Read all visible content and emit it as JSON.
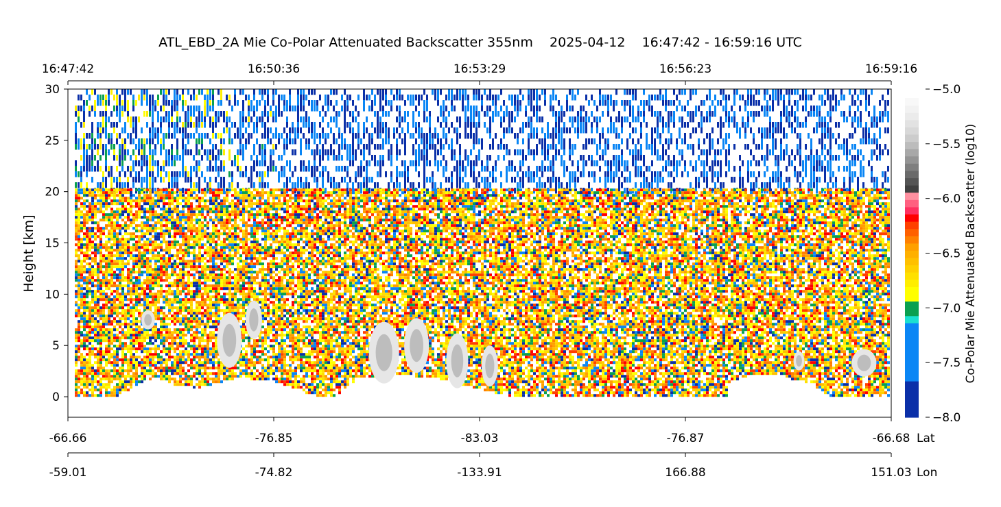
{
  "chart_data": {
    "type": "heatmap",
    "title": "ATL_EBD_2A Mie Co-Polar Attenuated Backscatter 355nm    2025-04-12    16:47:42 - 16:59:16 UTC",
    "ylabel": "Height [km]",
    "ylim": [
      -2,
      30
    ],
    "yticks": [
      0,
      5,
      10,
      15,
      20,
      25,
      30
    ],
    "time_ticks": [
      "16:47:42",
      "16:50:36",
      "16:53:29",
      "16:56:23",
      "16:59:16"
    ],
    "lat_ticks": [
      "-66.66",
      "-76.85",
      "-83.03",
      "-76.87",
      "-66.68"
    ],
    "lat_label": "Lat",
    "lon_ticks": [
      "-59.01",
      "-74.82",
      "-133.91",
      "166.88",
      "151.03"
    ],
    "lon_label": "Lon",
    "colorbar": {
      "label": "Co-Polar Mie Attenuated Backscatter (log10)",
      "range": [
        -8.0,
        -5.0
      ],
      "ticks": [
        "-8.0",
        "-7.5",
        "-7.0",
        "-6.5",
        "-6.0",
        "-5.5",
        "-5.0"
      ],
      "colors": [
        "#0a2fa8",
        "#0a2fa8",
        "#0a2fa8",
        "#0a2fa8",
        "#0a2fa8",
        "#0a86f5",
        "#0a86f5",
        "#0a86f5",
        "#0a86f5",
        "#0a86f5",
        "#0a86f5",
        "#0a86f5",
        "#0a86f5",
        "#1ae0d0",
        "#0aa050",
        "#0aa050",
        "#ffff00",
        "#ffff00",
        "#ffee00",
        "#ffe000",
        "#ffd000",
        "#ffc000",
        "#ffb000",
        "#ffa000",
        "#ff8000",
        "#ff6000",
        "#ff4000",
        "#ff0000",
        "#ff3060",
        "#ff6080",
        "#ff90a0",
        "#404040",
        "#555555",
        "#6a6a6a",
        "#7f7f7f",
        "#949494",
        "#a8a8a8",
        "#bcbcbc",
        "#cccccc",
        "#d8d8d8",
        "#e2e2e2",
        "#ebebeb",
        "#f2f2f2",
        "#f8f8f8"
      ]
    },
    "surface_profile": {
      "description_free": true,
      "lon_fraction": [
        0.0,
        0.05,
        0.08,
        0.1,
        0.12,
        0.15,
        0.2,
        0.25,
        0.3,
        0.32,
        0.35,
        0.4,
        0.45,
        0.5,
        0.52,
        0.55,
        0.6,
        0.65,
        0.7,
        0.75,
        0.8,
        0.8,
        0.83,
        0.86,
        0.9,
        0.93,
        0.95,
        1.0
      ],
      "height_km": [
        0.1,
        0.1,
        1.5,
        2.0,
        1.3,
        1.0,
        2.0,
        1.5,
        0.0,
        0.3,
        2.0,
        2.3,
        1.8,
        0.8,
        0.4,
        0.0,
        0.0,
        0.0,
        0.0,
        0.0,
        0.0,
        1.5,
        2.3,
        2.2,
        1.5,
        0.0,
        0.0,
        0.0
      ]
    }
  }
}
